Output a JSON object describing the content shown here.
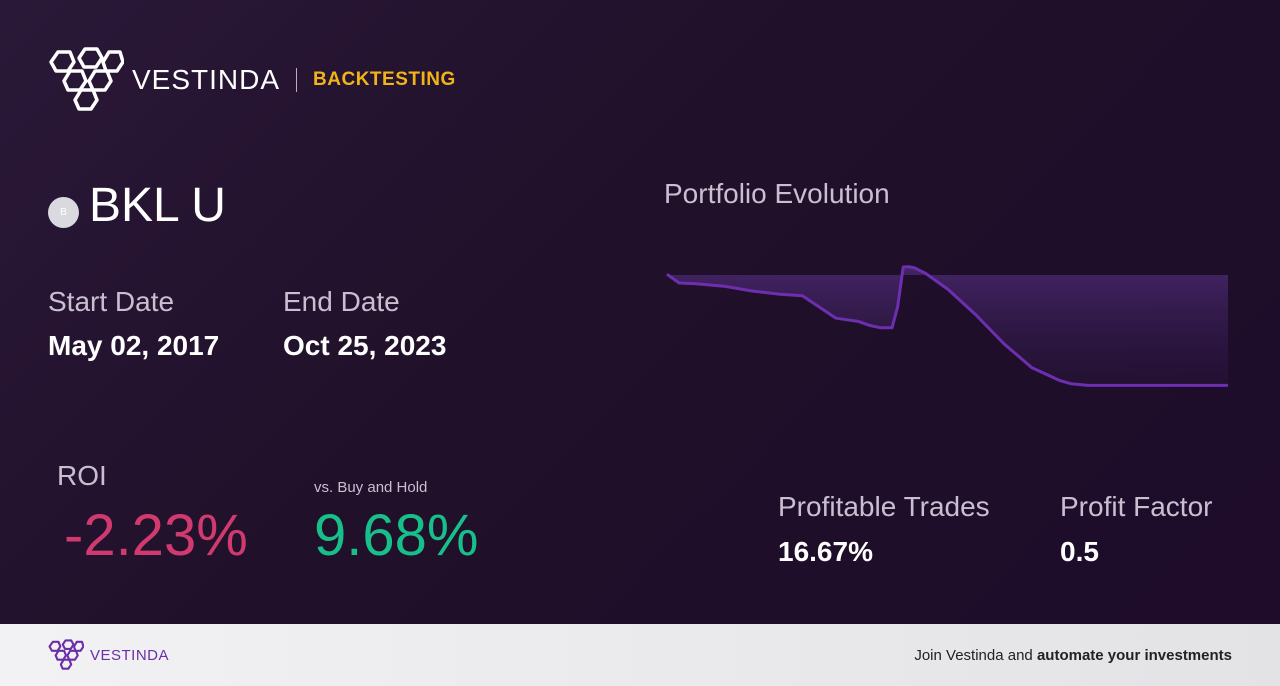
{
  "header": {
    "brand_name": "VESTINDA",
    "section_tag": "BACKTESTING"
  },
  "ticker": {
    "badge_letter": "B",
    "symbol": "BKL U"
  },
  "dates": {
    "start_label": "Start Date",
    "start_value": "May 02, 2017",
    "end_label": "End Date",
    "end_value": "Oct 25, 2023"
  },
  "performance": {
    "roi_label": "ROI",
    "roi_value": "-2.23%",
    "vs_label": "vs. Buy and Hold",
    "vs_value": "9.68%"
  },
  "chart": {
    "title": "Portfolio Evolution"
  },
  "chart_data": {
    "type": "area",
    "title": "Portfolio Evolution",
    "baseline": 0,
    "x": [
      0,
      2,
      5,
      10,
      15,
      20,
      24,
      27,
      30,
      32,
      34,
      36,
      38,
      40,
      41,
      42,
      43,
      44,
      46,
      50,
      55,
      60,
      65,
      70,
      72,
      75,
      80,
      85,
      90,
      95,
      100
    ],
    "values": [
      0,
      -5,
      -5.5,
      -7,
      -10,
      -12,
      -13,
      -20,
      -27,
      -28,
      -29,
      -31.5,
      -33,
      -33,
      -20,
      5,
      5.2,
      4.5,
      1,
      -9,
      -25,
      -43,
      -58,
      -66,
      -68,
      -69,
      -69,
      -69,
      -69,
      -69,
      -69
    ],
    "xlabel": "",
    "ylabel": "",
    "grid": false,
    "colors": {
      "line": "#6d2fb0",
      "fill": "#3f2160"
    }
  },
  "stats": {
    "profitable_label": "Profitable Trades",
    "profitable_value": "16.67%",
    "factor_label": "Profit Factor",
    "factor_value": "0.5"
  },
  "footer": {
    "brand_name": "VESTINDA",
    "cta_prefix": "Join Vestinda and ",
    "cta_bold": "automate your investments"
  },
  "colors": {
    "background": "#201029",
    "accent_gold": "#f0b318",
    "negative": "#d03a6f",
    "positive": "#17c08a",
    "brand_purple": "#6a2ea8"
  },
  "icons": [
    "vestinda-logo-icon",
    "ticker-badge-icon"
  ]
}
